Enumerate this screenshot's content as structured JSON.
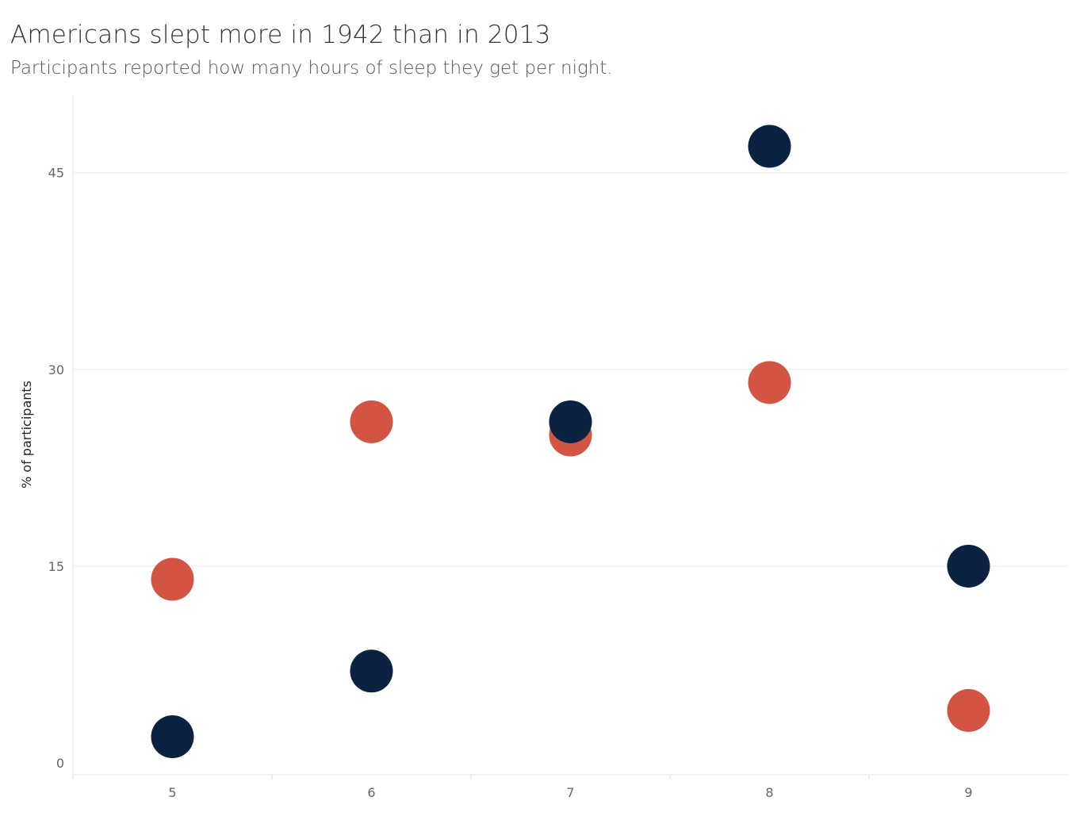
{
  "chart_data": {
    "type": "scatter",
    "title": "Americans slept more in 1942 than in 2013",
    "subtitle": "Participants reported how many hours of sleep they get per night.",
    "xlabel": "",
    "ylabel": "% of participants",
    "x_ticks": [
      5,
      6,
      7,
      8,
      9
    ],
    "y_ticks": [
      0,
      15,
      30,
      45
    ],
    "xlim": [
      4.5,
      9.5
    ],
    "ylim": [
      -0.9,
      50.9
    ],
    "grid": "horizontal",
    "legend": "none",
    "series": [
      {
        "color": "#d45443",
        "x": [
          5,
          6,
          7,
          8,
          9
        ],
        "y": [
          14,
          26,
          25,
          29,
          4
        ]
      },
      {
        "color": "#0b2242",
        "x": [
          5,
          6,
          7,
          8,
          9
        ],
        "y": [
          2,
          7,
          26,
          47,
          15
        ]
      }
    ]
  }
}
